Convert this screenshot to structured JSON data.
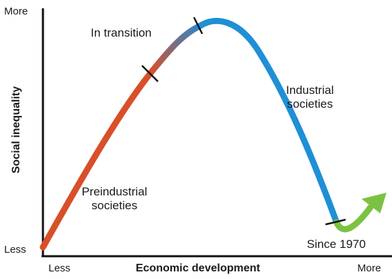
{
  "diagram": {
    "y_axis": {
      "title": "Social inequality",
      "top_label": "More",
      "bottom_label": "Less"
    },
    "x_axis": {
      "title": "Economic development",
      "left_label": "Less",
      "right_label": "More"
    },
    "stages": [
      {
        "name_lines": [
          "Preindustrial",
          "societies"
        ],
        "color": "#d84f2a"
      },
      {
        "name_lines": [
          "In transition"
        ],
        "color_start": "#d84f2a",
        "color_end": "#2f86c8"
      },
      {
        "name_lines": [
          "Industrial",
          "societies"
        ],
        "color": "#1f8fd6"
      },
      {
        "name_lines": [
          "Since 1970"
        ],
        "color": "#7cc242"
      }
    ],
    "axis_color": "#111111",
    "boundary_tick_color": "#111111"
  }
}
